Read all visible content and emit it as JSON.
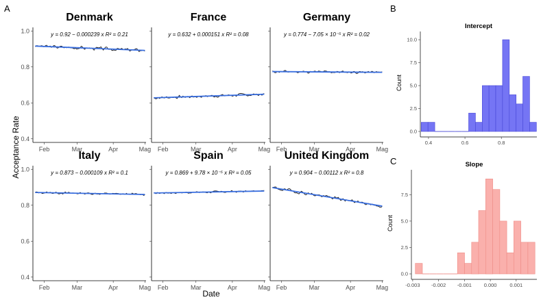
{
  "labels": {
    "panel_a": "A",
    "panel_b": "B",
    "panel_c": "C",
    "y_axis": "Acceptance Rate",
    "x_axis": "Date",
    "count": "Count"
  },
  "chart_data": [
    {
      "type": "line",
      "layout": "facet-grid-2x3",
      "ylim": [
        0.38,
        1.02
      ],
      "yticks": [
        "0.4",
        "0.6",
        "0.8",
        "1.0"
      ],
      "x_ticks": [
        "Feb",
        "Mar",
        "Apr",
        "Mag"
      ],
      "x_tick_positions": [
        0.1,
        0.39,
        0.71,
        0.99
      ],
      "panels": [
        {
          "title": "Denmark",
          "equation": "y = 0.92 − 0.000239 x   R² = 0.21",
          "fit_start": 0.916,
          "fit_end": 0.892,
          "noise": 0.011,
          "seed": 3
        },
        {
          "title": "France",
          "equation": "y = 0.632 + 0.000151 x   R² = 0.08",
          "fit_start": 0.628,
          "fit_end": 0.648,
          "noise": 0.01,
          "seed": 7
        },
        {
          "title": "Germany",
          "equation": "y = 0.774 − 7.05 × 10⁻⁵ x   R² = 0.02",
          "fit_start": 0.774,
          "fit_end": 0.77,
          "noise": 0.009,
          "seed": 11
        },
        {
          "title": "Italy",
          "equation": "y = 0.873 − 0.000109 x   R² = 0.1",
          "fit_start": 0.871,
          "fit_end": 0.86,
          "noise": 0.007,
          "seed": 13
        },
        {
          "title": "Spain",
          "equation": "y = 0.869 + 9.78 × 10⁻⁵ x   R² = 0.05",
          "fit_start": 0.868,
          "fit_end": 0.879,
          "noise": 0.007,
          "seed": 17
        },
        {
          "title": "United Kingdom",
          "equation": "y = 0.904 − 0.00112 x   R² = 0.8",
          "fit_start": 0.898,
          "fit_end": 0.795,
          "noise": 0.011,
          "seed": 19
        }
      ]
    },
    {
      "type": "bar",
      "title": "Intercept",
      "xlabel": "",
      "ylabel": "Count",
      "bins_start": 0.36,
      "bin_width": 0.0372,
      "counts": [
        1,
        1,
        0,
        0,
        0,
        0,
        0,
        2,
        1,
        5,
        5,
        5,
        10,
        4,
        3,
        6,
        1
      ],
      "xlim": [
        0.355,
        0.995
      ],
      "ylim": [
        0,
        10.6
      ],
      "xticks": [
        0.4,
        0.6,
        0.8
      ],
      "xtick_labels": [
        "0.4",
        "0.6",
        "0.8"
      ],
      "yticks": [
        0,
        2.5,
        5,
        7.5,
        10
      ],
      "ytick_labels": [
        "0.0",
        "2.5",
        "5.0",
        "7.5",
        "10.0"
      ],
      "color": "#7575f4",
      "edge_color": "#4747d6"
    },
    {
      "type": "bar",
      "title": "Slope",
      "xlabel": "",
      "ylabel": "Count",
      "bins_start": -0.0029,
      "bin_width": 0.000272,
      "counts": [
        1,
        0,
        0,
        0,
        0,
        0,
        2,
        1,
        3,
        6,
        9,
        8,
        5,
        2,
        5,
        3,
        3
      ],
      "xlim": [
        -0.00305,
        0.0018
      ],
      "ylim": [
        0,
        9.6
      ],
      "xticks": [
        -0.003,
        -0.002,
        -0.001,
        0,
        0.001
      ],
      "xtick_labels": [
        "-0.003",
        "-0.002",
        "-0.001",
        "0.000",
        "0.001"
      ],
      "yticks": [
        0,
        2.5,
        5,
        7.5
      ],
      "ytick_labels": [
        "0.0",
        "2.5",
        "5.0",
        "7.5"
      ],
      "color": "#fab0ac",
      "edge_color": "#ee8c86"
    }
  ]
}
